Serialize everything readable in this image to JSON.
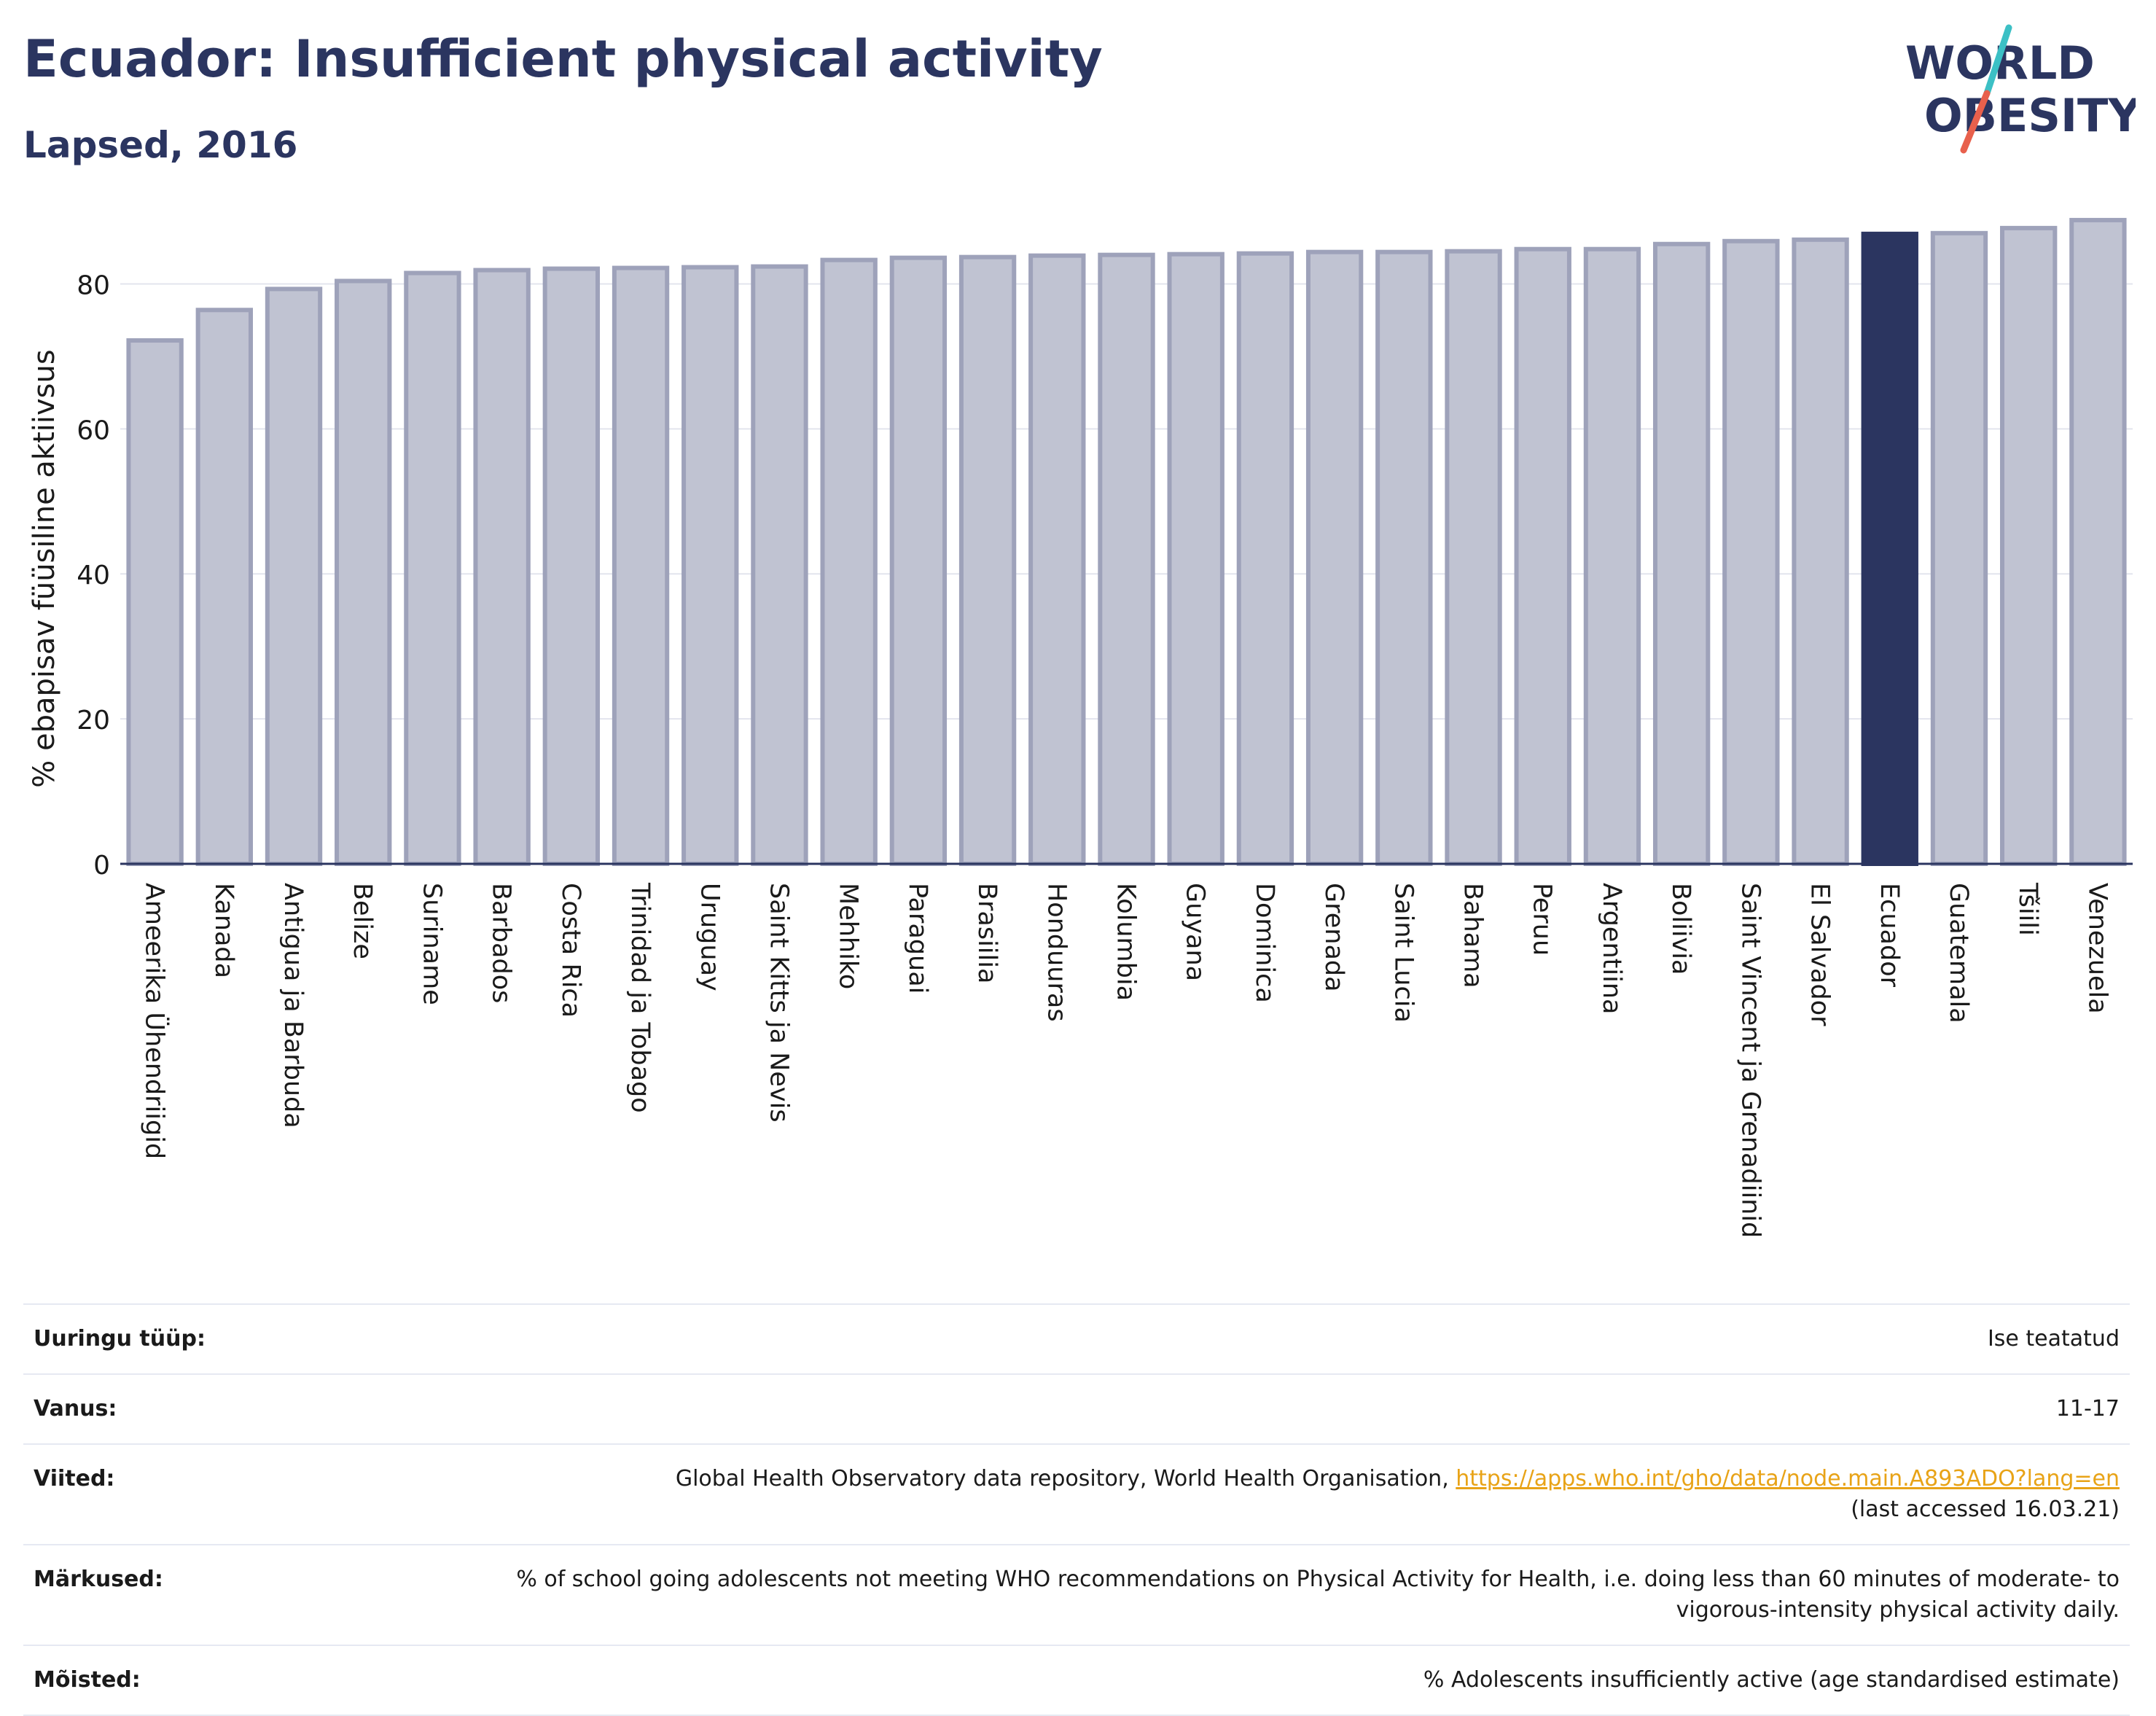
{
  "header": {
    "title": "Ecuador: Insufficient physical activity",
    "subtitle": "Lapsed, 2016"
  },
  "logo": {
    "line1": "WORLD",
    "line2": "OBESITY",
    "slash_colors": [
      "#3cc0c5",
      "#e8604c"
    ],
    "text_color": "#2b3560"
  },
  "chart_data": {
    "type": "bar",
    "ylabel": "% ebapisav füüsiline aktiivsus",
    "ylim": [
      0,
      90
    ],
    "yticks": [
      0,
      20,
      40,
      60,
      80
    ],
    "grid": true,
    "highlight": "Ecuador",
    "colors": {
      "bar": "#c0c3d2",
      "bar_edge": "#9ea2ba",
      "highlight": "#2b3560",
      "grid": "#e3e5ee"
    },
    "categories": [
      "Ameerika Ühendriigid",
      "Kanada",
      "Antigua ja Barbuda",
      "Belize",
      "Suriname",
      "Barbados",
      "Costa Rica",
      "Trinidad ja Tobago",
      "Uruguay",
      "Saint Kitts ja Nevis",
      "Mehhiko",
      "Paraguai",
      "Brasiilia",
      "Honduuras",
      "Kolumbia",
      "Guyana",
      "Dominica",
      "Grenada",
      "Saint Lucia",
      "Bahama",
      "Peruu",
      "Argentiina",
      "Boliivia",
      "Saint Vincent ja Grenadiinid",
      "El Salvador",
      "Ecuador",
      "Guatemala",
      "Tšiili",
      "Venezuela"
    ],
    "values": [
      72.2,
      76.4,
      79.3,
      80.4,
      81.5,
      81.9,
      82.1,
      82.2,
      82.3,
      82.4,
      83.3,
      83.6,
      83.7,
      83.9,
      84.0,
      84.1,
      84.2,
      84.4,
      84.4,
      84.5,
      84.8,
      84.8,
      85.5,
      85.9,
      86.1,
      86.9,
      87.0,
      87.7,
      88.8
    ]
  },
  "info": {
    "rows": [
      {
        "key": "Uuringu tüüp:",
        "value": "Ise teatatud"
      },
      {
        "key": "Vanus:",
        "value": "11-17"
      },
      {
        "key": "Viited:",
        "value": "Global Health Observatory data repository, World Health Organisation, ",
        "link": "https://apps.who.int/gho/data/node.main.A893ADO?lang=en",
        "value2": "(last accessed 16.03.21)"
      },
      {
        "key": "Märkused:",
        "value": "% of school going adolescents not meeting WHO recommendations on Physical Activity for Health, i.e. doing less than 60 minutes of moderate- to vigorous-intensity physical activity daily."
      },
      {
        "key": "Mõisted:",
        "value": "% Adolescents insufficiently active (age standardised estimate)"
      }
    ]
  }
}
